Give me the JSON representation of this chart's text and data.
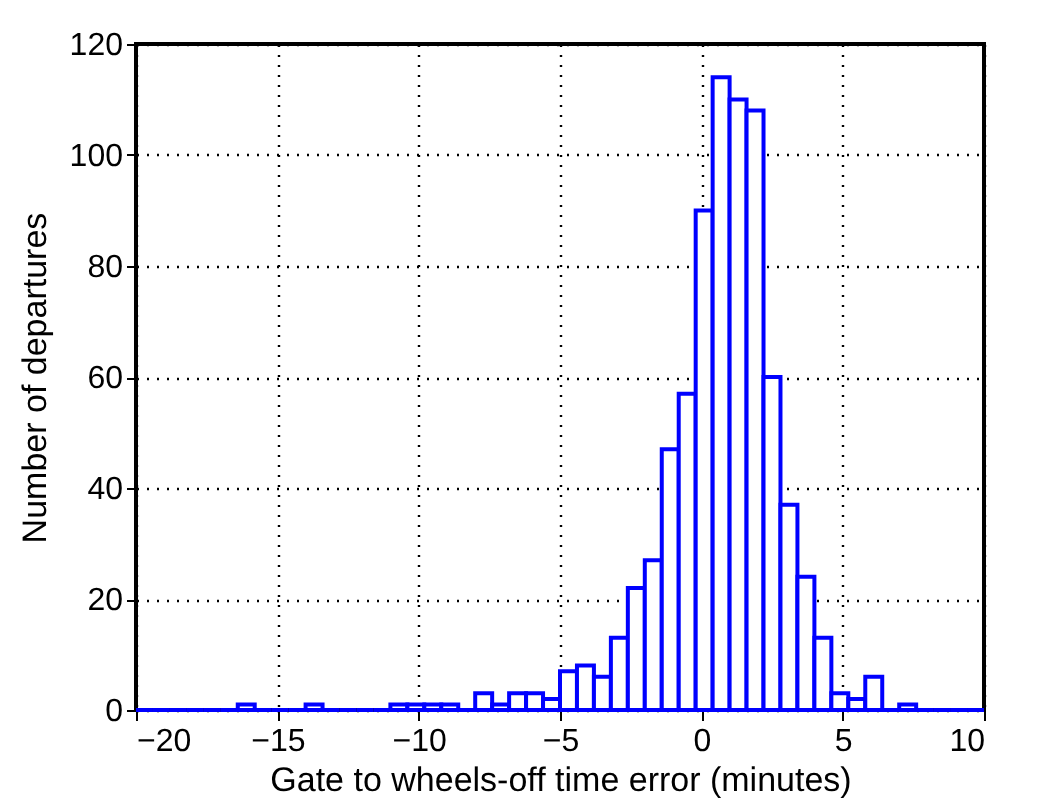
{
  "chart_data": {
    "type": "histogram",
    "xlabel": "Gate to wheels-off time error (minutes)",
    "ylabel": "Number of departures",
    "bins": [
      -20.0,
      -19.4,
      -18.8,
      -18.2,
      -17.6,
      -17.0,
      -16.4,
      -15.8,
      -15.2,
      -14.6,
      -14.0,
      -13.4,
      -12.8,
      -12.2,
      -11.6,
      -11.0,
      -10.4,
      -9.8,
      -9.2,
      -8.6,
      -8.0,
      -7.4,
      -6.8,
      -6.2,
      -5.6,
      -5.0,
      -4.4,
      -3.8,
      -3.2,
      -2.6,
      -2.0,
      -1.4,
      -0.8,
      -0.2,
      0.4,
      1.0,
      1.6,
      2.2,
      2.8,
      3.4,
      4.0,
      4.6,
      5.2,
      5.8,
      6.4,
      7.0,
      7.6,
      8.2,
      8.8,
      9.4,
      10.0
    ],
    "values": [
      0,
      0,
      0,
      0,
      0,
      0,
      1,
      0,
      0,
      0,
      1,
      0,
      0,
      0,
      0,
      1,
      1,
      1,
      1,
      0,
      3,
      1,
      3,
      3,
      2,
      7,
      8,
      6,
      13,
      22,
      27,
      47,
      57,
      90,
      114,
      110,
      108,
      60,
      37,
      24,
      13,
      3,
      2,
      6,
      0,
      1,
      0,
      0,
      0,
      0
    ],
    "color": "#0000ff",
    "xlim": [
      -20,
      10
    ],
    "xticks": [
      -20,
      -15,
      -10,
      -5,
      0,
      5,
      10
    ],
    "ylim": [
      0,
      120
    ],
    "yticks": [
      0,
      20,
      40,
      60,
      80,
      100,
      120
    ],
    "grid": true
  }
}
